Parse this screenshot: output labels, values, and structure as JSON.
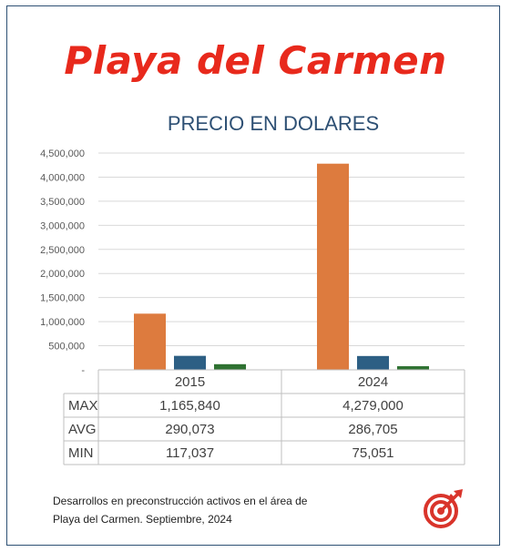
{
  "headline": "Playa del Carmen",
  "footnote": {
    "line1": "Desarrollos en preconstrucción activos en el área de",
    "line2": "Playa del Carmen. Septiembre, 2024"
  },
  "colors": {
    "headline": "#e8291c",
    "title": "#2e5074",
    "frame": "#2e5074",
    "logo": "#d9342b"
  },
  "chart_data": {
    "type": "bar",
    "title": "PRECIO EN DOLARES",
    "xlabel": "",
    "ylabel": "",
    "categories": [
      "2015",
      "2024"
    ],
    "ylim": [
      0,
      4500000
    ],
    "yticks": [
      0,
      500000,
      1000000,
      1500000,
      2000000,
      2500000,
      3000000,
      3500000,
      4000000,
      4500000
    ],
    "ytick_labels": [
      "-",
      "500,000",
      "1,000,000",
      "1,500,000",
      "2,000,000",
      "2,500,000",
      "3,000,000",
      "3,500,000",
      "4,000,000",
      "4,500,000"
    ],
    "grid": true,
    "legend": "data table below chart",
    "series": [
      {
        "name": "MAX",
        "color": "#dd7b3e",
        "values": [
          1165840,
          4279000
        ],
        "labels": [
          "1,165,840",
          "4,279,000"
        ]
      },
      {
        "name": "AVG",
        "color": "#2d5f84",
        "values": [
          290073,
          286705
        ],
        "labels": [
          "290,073",
          "286,705"
        ]
      },
      {
        "name": "MIN",
        "color": "#2f7232",
        "values": [
          117037,
          75051
        ],
        "labels": [
          "117,037",
          "75,051"
        ]
      }
    ]
  }
}
